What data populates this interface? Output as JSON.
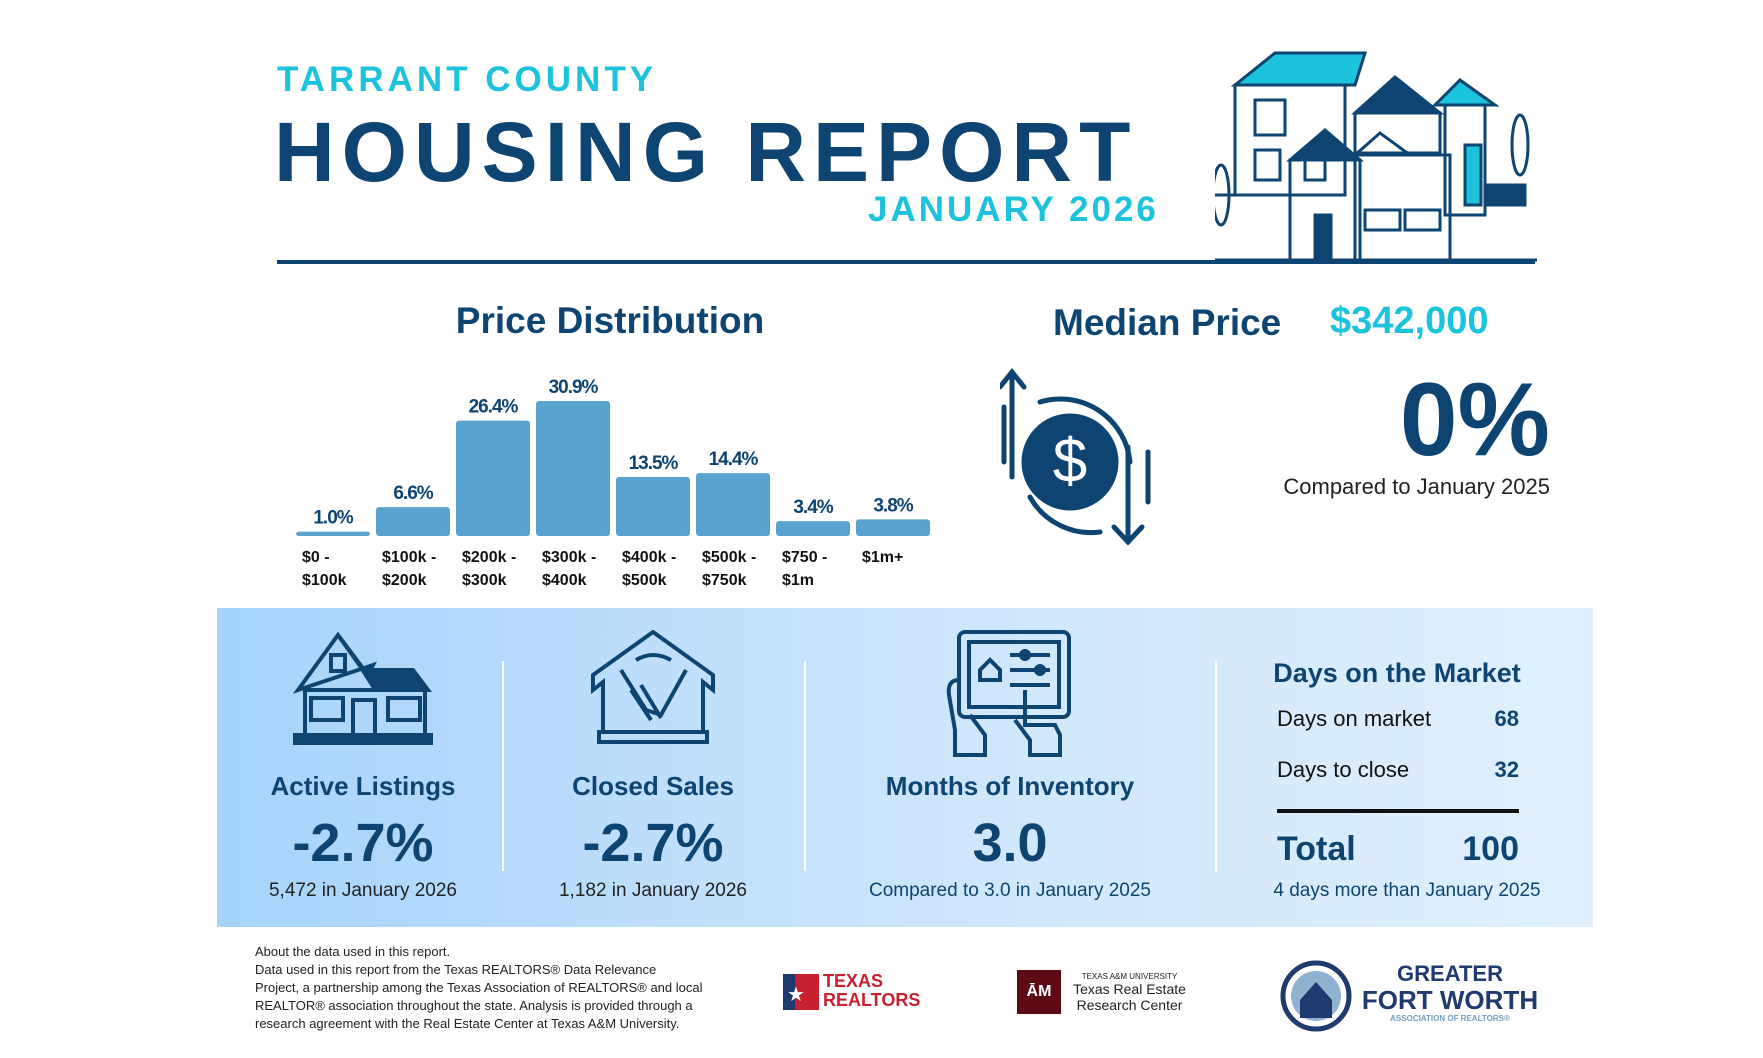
{
  "header": {
    "county": "TARRANT COUNTY",
    "title": "HOUSING REPORT",
    "date": "JANUARY 2026"
  },
  "colors": {
    "navy": "#0e4472",
    "cyan": "#1cc3dc",
    "bar": "#5ba3cf",
    "panel": "#a6d4fb"
  },
  "chart_data": {
    "type": "bar",
    "title": "Price Distribution",
    "categories": [
      "$0 - $100k",
      "$100k - $200k",
      "$200k - $300k",
      "$300k - $400k",
      "$400k - $500k",
      "$500k - $750k",
      "$750 - $1m",
      "$1m+"
    ],
    "category_lines": [
      [
        "$0 -",
        "$100k"
      ],
      [
        "$100k -",
        "$200k"
      ],
      [
        "$200k -",
        "$300k"
      ],
      [
        "$300k -",
        "$400k"
      ],
      [
        "$400k -",
        "$500k"
      ],
      [
        "$500k -",
        "$750k"
      ],
      [
        "$750 -",
        "$1m"
      ],
      [
        "$1m+",
        ""
      ]
    ],
    "values": [
      1.0,
      6.6,
      26.4,
      30.9,
      13.5,
      14.4,
      3.4,
      3.8
    ],
    "labels": [
      "1.0%",
      "6.6%",
      "26.4%",
      "30.9%",
      "13.5%",
      "14.4%",
      "3.4%",
      "3.8%"
    ],
    "unit": "%",
    "grid": false
  },
  "median": {
    "label": "Median Price",
    "value": "$342,000",
    "change": "0%",
    "compare": "Compared to January 2025",
    "icon": "dollar-exchange-icon"
  },
  "stats": [
    {
      "title": "Active Listings",
      "value": "-2.7%",
      "sub": "5,472 in January 2026",
      "icon": "house-icon"
    },
    {
      "title": "Closed Sales",
      "value": "-2.7%",
      "sub": "1,182 in January 2026",
      "icon": "handshake-house-icon"
    },
    {
      "title": "Months of Inventory",
      "value": "3.0",
      "sub": "Compared to 3.0 in January 2025",
      "icon": "tablet-hands-icon"
    }
  ],
  "dom": {
    "title": "Days on the Market",
    "rows": [
      {
        "label": "Days on market",
        "value": "68"
      },
      {
        "label": "Days to close",
        "value": "32"
      }
    ],
    "total_label": "Total",
    "total_value": "100",
    "sub": "4 days more than January 2025"
  },
  "footer": {
    "lines": [
      "About the data used in this report.",
      "Data used in this report from the Texas REALTORS® Data Relevance",
      "Project, a partnership among the Texas Association of REALTORS® and local",
      "REALTOR® association throughout the state. Analysis is provided through a",
      "research agreement with the Real Estate Center at Texas A&M University."
    ]
  },
  "logos": {
    "texas_realtors": [
      "TEXAS",
      "REALTORS"
    ],
    "tamu": {
      "small": "TEXAS A&M UNIVERSITY",
      "line1": "Texas Real Estate",
      "line2": "Research Center"
    },
    "gfw": {
      "line1": "GREATER",
      "line2": "FORT WORTH",
      "line3": "ASSOCIATION OF REALTORS®"
    }
  }
}
